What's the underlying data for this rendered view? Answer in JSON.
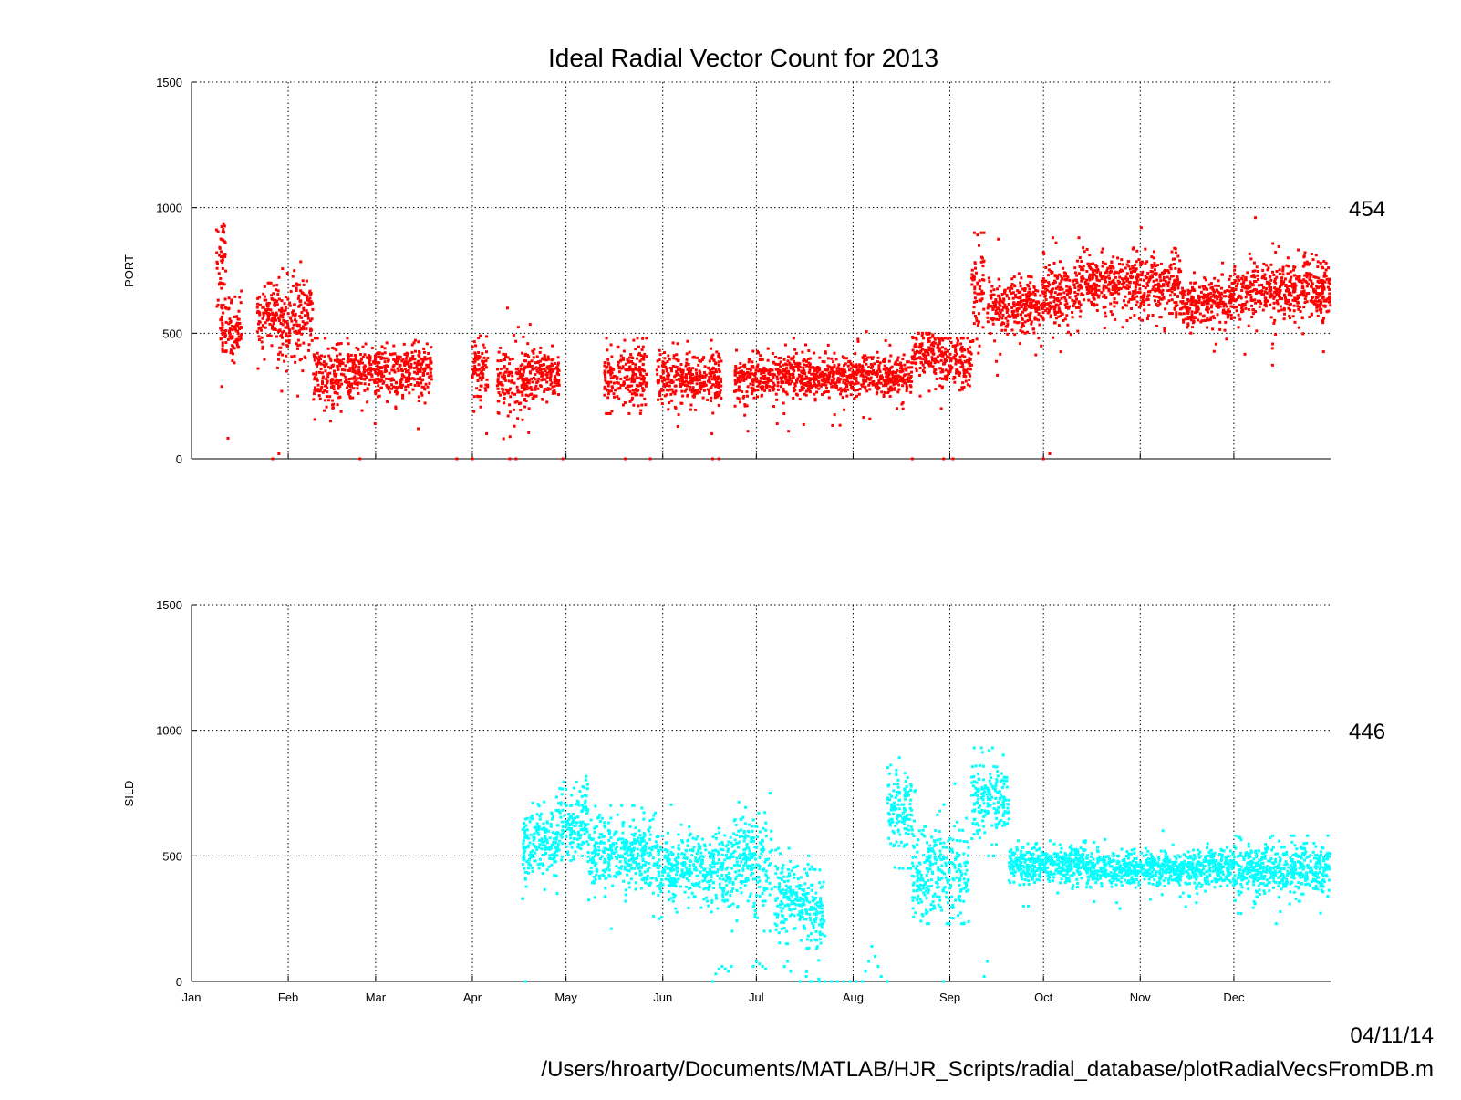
{
  "chart_data": {
    "type": "scatter",
    "title": "Ideal Radial Vector Count for 2013",
    "x_tick_labels": [
      "Jan",
      "Feb",
      "Mar",
      "Apr",
      "May",
      "Jun",
      "Jul",
      "Aug",
      "Sep",
      "Oct",
      "Nov",
      "Dec"
    ],
    "x_tick_days": [
      1,
      32,
      60,
      91,
      121,
      152,
      182,
      213,
      244,
      274,
      305,
      335
    ],
    "xlim_days": [
      1,
      366
    ],
    "grid": true,
    "panels": [
      {
        "ylabel": "PORT",
        "ylim": [
          0,
          1500
        ],
        "y_ticks": [
          0,
          500,
          1000,
          1500
        ],
        "y_tick_labels": [
          "0",
          "500",
          "1000",
          "1500"
        ],
        "side_value": "454",
        "color": "#ff0000",
        "series": [
          {
            "segments": [
              {
                "from": 9,
                "to": 12,
                "mean": 800,
                "spread": 90,
                "min": 0,
                "max": 940
              },
              {
                "from": 10,
                "to": 17,
                "mean": 520,
                "spread": 60,
                "min": 0,
                "max": 750
              },
              {
                "from": 22,
                "to": 28,
                "mean": 560,
                "spread": 60,
                "min": 150,
                "max": 700
              },
              {
                "from": 28,
                "to": 40,
                "mean": 550,
                "spread": 80,
                "min": 250,
                "max": 840
              },
              {
                "from": 40,
                "to": 52,
                "mean": 340,
                "spread": 60,
                "min": 150,
                "max": 480
              },
              {
                "from": 52,
                "to": 78,
                "mean": 350,
                "spread": 50,
                "min": 120,
                "max": 550
              },
              {
                "from": 91,
                "to": 96,
                "mean": 340,
                "spread": 60,
                "min": 100,
                "max": 490
              },
              {
                "from": 99,
                "to": 110,
                "mean": 320,
                "spread": 70,
                "min": 80,
                "max": 600
              },
              {
                "from": 110,
                "to": 119,
                "mean": 340,
                "spread": 50,
                "min": 130,
                "max": 450
              },
              {
                "from": 133,
                "to": 147,
                "mean": 330,
                "spread": 60,
                "min": 180,
                "max": 480
              },
              {
                "from": 150,
                "to": 171,
                "mean": 320,
                "spread": 50,
                "min": 100,
                "max": 560
              },
              {
                "from": 175,
                "to": 212,
                "mean": 330,
                "spread": 40,
                "min": 110,
                "max": 480
              },
              {
                "from": 212,
                "to": 232,
                "mean": 330,
                "spread": 40,
                "min": 100,
                "max": 580
              },
              {
                "from": 232,
                "to": 239,
                "mean": 420,
                "spread": 45,
                "min": 250,
                "max": 500
              },
              {
                "from": 239,
                "to": 251,
                "mean": 390,
                "spread": 50,
                "min": 200,
                "max": 480
              },
              {
                "from": 251,
                "to": 255,
                "mean": 650,
                "spread": 110,
                "min": 80,
                "max": 900
              },
              {
                "from": 256,
                "to": 274,
                "mean": 610,
                "spread": 55,
                "min": 300,
                "max": 960
              },
              {
                "from": 274,
                "to": 286,
                "mean": 660,
                "spread": 60,
                "min": 0,
                "max": 880
              },
              {
                "from": 286,
                "to": 305,
                "mean": 700,
                "spread": 55,
                "min": 220,
                "max": 840
              },
              {
                "from": 305,
                "to": 318,
                "mean": 700,
                "spread": 60,
                "min": 210,
                "max": 920
              },
              {
                "from": 318,
                "to": 335,
                "mean": 620,
                "spread": 45,
                "min": 310,
                "max": 780
              },
              {
                "from": 335,
                "to": 366,
                "mean": 670,
                "spread": 60,
                "min": 180,
                "max": 960
              }
            ],
            "points": [
              [
                27,
                0
              ],
              [
                29,
                20
              ],
              [
                55,
                0
              ],
              [
                86,
                0
              ],
              [
                91,
                0
              ],
              [
                103,
                0
              ],
              [
                105,
                0
              ],
              [
                120,
                0
              ],
              [
                140,
                0
              ],
              [
                148,
                0
              ],
              [
                168,
                0
              ],
              [
                170,
                0
              ],
              [
                232,
                0
              ],
              [
                242,
                0
              ],
              [
                245,
                0
              ],
              [
                274,
                0
              ],
              [
                276,
                20
              ]
            ]
          }
        ]
      },
      {
        "ylabel": "SILD",
        "ylim": [
          0,
          1500
        ],
        "y_ticks": [
          0,
          500,
          1000,
          1500
        ],
        "y_tick_labels": [
          "0",
          "500",
          "1000",
          "1500"
        ],
        "side_value": "446",
        "color": "#00ffff",
        "series": [
          {
            "segments": [
              {
                "from": 107,
                "to": 118,
                "mean": 560,
                "spread": 70,
                "min": 330,
                "max": 760
              },
              {
                "from": 118,
                "to": 128,
                "mean": 640,
                "spread": 80,
                "min": 200,
                "max": 840
              },
              {
                "from": 128,
                "to": 150,
                "mean": 510,
                "spread": 70,
                "min": 210,
                "max": 700
              },
              {
                "from": 150,
                "to": 168,
                "mean": 460,
                "spread": 70,
                "min": 250,
                "max": 740
              },
              {
                "from": 168,
                "to": 175,
                "mean": 450,
                "spread": 80,
                "min": 200,
                "max": 640
              },
              {
                "from": 175,
                "to": 187,
                "mean": 480,
                "spread": 90,
                "min": 200,
                "max": 750
              },
              {
                "from": 188,
                "to": 196,
                "mean": 330,
                "spread": 80,
                "min": 150,
                "max": 530
              },
              {
                "from": 196,
                "to": 204,
                "mean": 280,
                "spread": 90,
                "min": 0,
                "max": 500
              },
              {
                "from": 224,
                "to": 232,
                "mean": 680,
                "spread": 90,
                "min": 450,
                "max": 910
              },
              {
                "from": 232,
                "to": 250,
                "mean": 430,
                "spread": 90,
                "min": 230,
                "max": 850
              },
              {
                "from": 251,
                "to": 263,
                "mean": 720,
                "spread": 70,
                "min": 500,
                "max": 930
              },
              {
                "from": 263,
                "to": 288,
                "mean": 470,
                "spread": 35,
                "min": 300,
                "max": 560
              },
              {
                "from": 288,
                "to": 335,
                "mean": 450,
                "spread": 35,
                "min": 290,
                "max": 600
              },
              {
                "from": 335,
                "to": 366,
                "mean": 450,
                "spread": 50,
                "min": 60,
                "max": 580
              }
            ],
            "points": [
              [
                108,
                0
              ],
              [
                168,
                0
              ],
              [
                169,
                30
              ],
              [
                170,
                50
              ],
              [
                171,
                60
              ],
              [
                172,
                50
              ],
              [
                173,
                40
              ],
              [
                174,
                60
              ],
              [
                181,
                60
              ],
              [
                182,
                80
              ],
              [
                183,
                70
              ],
              [
                184,
                60
              ],
              [
                185,
                50
              ],
              [
                191,
                60
              ],
              [
                192,
                80
              ],
              [
                193,
                40
              ],
              [
                196,
                0
              ],
              [
                198,
                20
              ],
              [
                200,
                0
              ],
              [
                202,
                10
              ],
              [
                204,
                0
              ],
              [
                206,
                0
              ],
              [
                208,
                0
              ],
              [
                210,
                0
              ],
              [
                212,
                0
              ],
              [
                214,
                0
              ],
              [
                216,
                0
              ],
              [
                217,
                40
              ],
              [
                218,
                80
              ],
              [
                219,
                140
              ],
              [
                220,
                100
              ],
              [
                221,
                60
              ],
              [
                222,
                20
              ],
              [
                224,
                0
              ],
              [
                242,
                0
              ],
              [
                255,
                20
              ],
              [
                256,
                80
              ]
            ]
          }
        ]
      }
    ],
    "footer_date": "04/11/14",
    "footer_path": "/Users/hroarty/Documents/MATLAB/HJR_Scripts/radial_database/plotRadialVecsFromDB.m"
  }
}
